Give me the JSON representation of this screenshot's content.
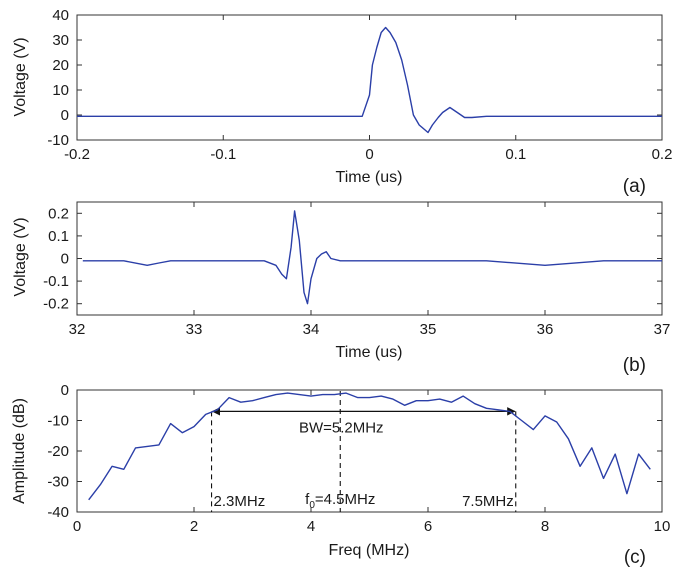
{
  "chart_data": [
    {
      "type": "line",
      "panel_label": "(a)",
      "xlabel": "Time (us)",
      "ylabel": "Voltage (V)",
      "xlim": [
        -0.2,
        0.2
      ],
      "ylim": [
        -10,
        40
      ],
      "xticks": [
        -0.2,
        -0.1,
        0,
        0.1,
        0.2
      ],
      "xtick_labels": [
        "-0.2",
        "-0.1",
        "0",
        "0.1",
        "0.2"
      ],
      "yticks": [
        -10,
        0,
        10,
        20,
        30,
        40
      ],
      "ytick_labels": [
        "-10",
        "0",
        "10",
        "20",
        "30",
        "40"
      ],
      "grid": false,
      "color": "#2b3fa8",
      "x": [
        -0.2,
        -0.15,
        -0.1,
        -0.05,
        -0.005,
        0,
        0.002,
        0.005,
        0.008,
        0.011,
        0.014,
        0.018,
        0.022,
        0.026,
        0.03,
        0.034,
        0.038,
        0.04,
        0.043,
        0.047,
        0.05,
        0.055,
        0.06,
        0.065,
        0.07,
        0.08,
        0.1,
        0.15,
        0.2
      ],
      "y": [
        -0.5,
        -0.5,
        -0.5,
        -0.5,
        -0.5,
        8,
        20,
        27,
        33,
        35,
        33,
        29,
        22,
        12,
        0,
        -4,
        -6,
        -7,
        -4,
        -1,
        1,
        3,
        1,
        -1,
        -1,
        -0.5,
        -0.5,
        -0.5,
        -0.5
      ]
    },
    {
      "type": "line",
      "panel_label": "(b)",
      "xlabel": "Time (us)",
      "ylabel": "Voltage (V)",
      "xlim": [
        32,
        37
      ],
      "ylim": [
        -0.25,
        0.25
      ],
      "xticks": [
        32,
        33,
        34,
        35,
        36,
        37
      ],
      "xtick_labels": [
        "32",
        "33",
        "34",
        "35",
        "36",
        "37"
      ],
      "yticks": [
        -0.2,
        -0.1,
        0,
        0.1,
        0.2
      ],
      "ytick_labels": [
        "-0.2",
        "-0.1",
        "0",
        "0.1",
        "0.2"
      ],
      "grid": false,
      "color": "#2b3fa8",
      "x": [
        32.05,
        32.4,
        32.6,
        32.7,
        32.8,
        33.2,
        33.6,
        33.7,
        33.75,
        33.79,
        33.83,
        33.86,
        33.9,
        33.94,
        33.97,
        34.0,
        34.05,
        34.09,
        34.13,
        34.17,
        34.25,
        34.5,
        35.0,
        35.5,
        36.0,
        36.5,
        37.0
      ],
      "y": [
        -0.01,
        -0.01,
        -0.03,
        -0.02,
        -0.01,
        -0.01,
        -0.01,
        -0.03,
        -0.07,
        -0.09,
        0.05,
        0.21,
        0.08,
        -0.15,
        -0.2,
        -0.09,
        0.0,
        0.02,
        0.03,
        0.0,
        -0.01,
        -0.01,
        -0.01,
        -0.01,
        -0.03,
        -0.01,
        -0.01
      ]
    },
    {
      "type": "line",
      "panel_label": "(c)",
      "xlabel": "Freq (MHz)",
      "ylabel": "Amplitude (dB)",
      "xlim": [
        0,
        10
      ],
      "ylim": [
        -40,
        0
      ],
      "xticks": [
        0,
        2,
        4,
        6,
        8,
        10
      ],
      "xtick_labels": [
        "0",
        "2",
        "4",
        "6",
        "8",
        "10"
      ],
      "yticks": [
        -40,
        -30,
        -20,
        -10,
        0
      ],
      "ytick_labels": [
        "-40",
        "-30",
        "-20",
        "-10",
        "0"
      ],
      "grid": false,
      "color": "#2b3fa8",
      "x": [
        0.2,
        0.4,
        0.6,
        0.8,
        1.0,
        1.2,
        1.4,
        1.6,
        1.8,
        2.0,
        2.2,
        2.4,
        2.6,
        2.8,
        3.0,
        3.2,
        3.4,
        3.6,
        3.8,
        4.0,
        4.2,
        4.4,
        4.6,
        4.8,
        5.0,
        5.2,
        5.4,
        5.6,
        5.8,
        6.0,
        6.2,
        6.4,
        6.6,
        6.8,
        7.0,
        7.2,
        7.4,
        7.6,
        7.8,
        8.0,
        8.2,
        8.4,
        8.6,
        8.8,
        9.0,
        9.2,
        9.4,
        9.6,
        9.8
      ],
      "y": [
        -36,
        -31,
        -25,
        -26,
        -19,
        -18.5,
        -18,
        -11,
        -14,
        -12,
        -8,
        -6.5,
        -2.5,
        -4,
        -3.5,
        -2.5,
        -1.5,
        -1,
        -1.5,
        -2,
        -1.5,
        -1.5,
        -1,
        -2.5,
        -2.5,
        -2,
        -3,
        -5,
        -3.5,
        -3.5,
        -3,
        -4,
        -2,
        -4.5,
        -6,
        -6.5,
        -7,
        -10,
        -13,
        -8.5,
        -10.5,
        -16,
        -25,
        -19,
        -29,
        -21,
        -34,
        -21,
        -26
      ],
      "annotations": {
        "bw_label": "BW=5.2MHz",
        "bw_from": 2.3,
        "bw_to": 7.5,
        "bw_level": -7,
        "left_label": "2.3MHz",
        "center_sub": "0",
        "center_value": "=4.5MHz",
        "center_x": 4.5,
        "right_label": "7.5MHz"
      }
    }
  ]
}
